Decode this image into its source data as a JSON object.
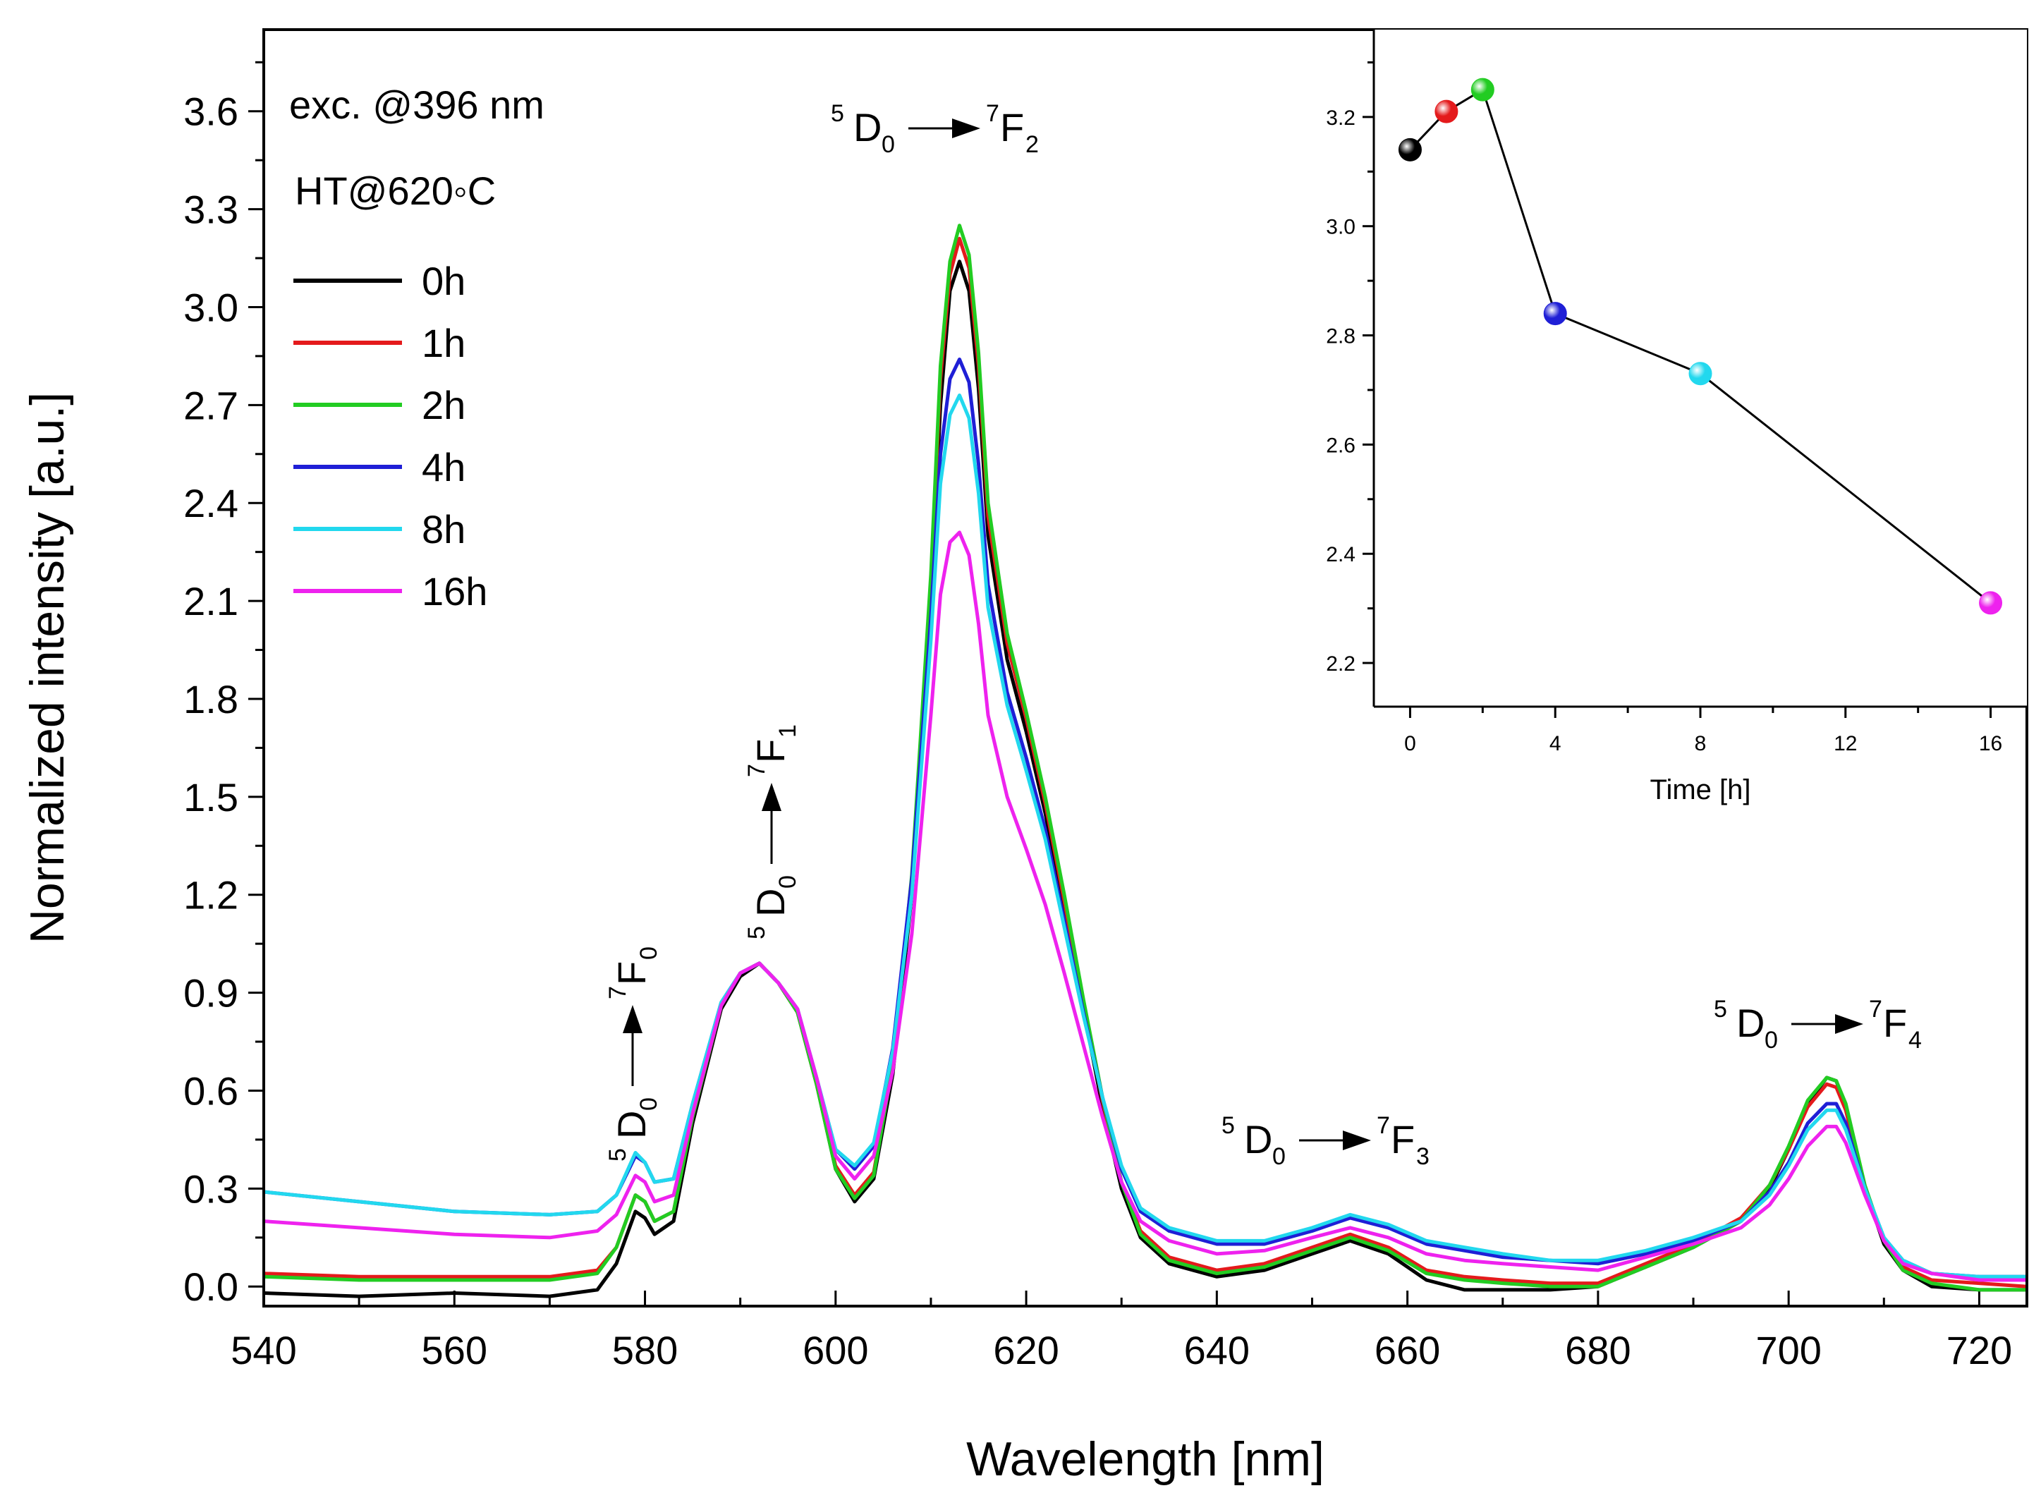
{
  "chart_data": {
    "type": "line",
    "xlabel": "Wavelength [nm]",
    "ylabel": "Normalized intensity [a.u.]",
    "xlim": [
      540,
      725
    ],
    "ylim": [
      -0.06,
      3.85
    ],
    "xticks": [
      540,
      560,
      580,
      600,
      620,
      640,
      660,
      680,
      700,
      720
    ],
    "yticks": [
      0.0,
      0.3,
      0.6,
      0.9,
      1.2,
      1.5,
      1.8,
      2.1,
      2.4,
      2.7,
      3.0,
      3.3,
      3.6
    ],
    "ytick_labels": [
      "0.0",
      "0.3",
      "0.6",
      "0.9",
      "1.2",
      "1.5",
      "1.8",
      "2.1",
      "2.4",
      "2.7",
      "3.0",
      "3.3",
      "3.6"
    ],
    "excitation_label": "exc. @396 nm",
    "treatment_label": "HT@620◦C",
    "series": [
      {
        "name": "0h",
        "color": "#000000",
        "x": [
          540,
          550,
          560,
          570,
          575,
          577,
          579,
          580,
          581,
          583,
          585,
          588,
          590,
          592,
          594,
          596,
          598,
          600,
          602,
          604,
          606,
          608,
          610,
          611,
          612,
          613,
          614,
          615,
          616,
          618,
          620,
          622,
          624,
          626,
          628,
          630,
          632,
          635,
          640,
          645,
          650,
          654,
          658,
          662,
          666,
          670,
          675,
          680,
          685,
          690,
          695,
          698,
          700,
          702,
          704,
          705,
          706,
          708,
          710,
          712,
          715,
          720,
          725
        ],
        "y": [
          -0.02,
          -0.03,
          -0.02,
          -0.03,
          -0.01,
          0.07,
          0.23,
          0.21,
          0.16,
          0.2,
          0.5,
          0.85,
          0.95,
          0.99,
          0.93,
          0.84,
          0.62,
          0.36,
          0.26,
          0.33,
          0.65,
          1.2,
          2.1,
          2.7,
          3.05,
          3.14,
          3.05,
          2.75,
          2.3,
          1.92,
          1.7,
          1.45,
          1.15,
          0.85,
          0.55,
          0.3,
          0.15,
          0.07,
          0.03,
          0.05,
          0.1,
          0.14,
          0.1,
          0.02,
          -0.01,
          -0.01,
          -0.01,
          0,
          0.06,
          0.12,
          0.2,
          0.3,
          0.42,
          0.56,
          0.64,
          0.63,
          0.55,
          0.3,
          0.13,
          0.05,
          0,
          -0.01,
          -0.01
        ]
      },
      {
        "name": "1h",
        "color": "#e41a1c",
        "x": [
          540,
          550,
          560,
          570,
          575,
          577,
          579,
          580,
          581,
          583,
          585,
          588,
          590,
          592,
          594,
          596,
          598,
          600,
          602,
          604,
          606,
          608,
          610,
          611,
          612,
          613,
          614,
          615,
          616,
          618,
          620,
          622,
          624,
          626,
          628,
          630,
          632,
          635,
          640,
          645,
          650,
          654,
          658,
          662,
          666,
          670,
          675,
          680,
          685,
          690,
          695,
          698,
          700,
          702,
          704,
          705,
          706,
          708,
          710,
          712,
          715,
          720,
          725
        ],
        "y": [
          0.04,
          0.03,
          0.03,
          0.03,
          0.05,
          0.12,
          0.28,
          0.26,
          0.2,
          0.23,
          0.52,
          0.86,
          0.96,
          0.99,
          0.93,
          0.84,
          0.62,
          0.37,
          0.28,
          0.35,
          0.68,
          1.25,
          2.15,
          2.78,
          3.1,
          3.21,
          3.12,
          2.82,
          2.36,
          1.97,
          1.74,
          1.48,
          1.18,
          0.87,
          0.57,
          0.32,
          0.17,
          0.09,
          0.05,
          0.07,
          0.12,
          0.16,
          0.12,
          0.05,
          0.03,
          0.02,
          0.01,
          0.01,
          0.07,
          0.13,
          0.21,
          0.31,
          0.42,
          0.55,
          0.62,
          0.61,
          0.54,
          0.3,
          0.14,
          0.06,
          0.02,
          0.01,
          0.0
        ]
      },
      {
        "name": "2h",
        "color": "#22cc22",
        "x": [
          540,
          550,
          560,
          570,
          575,
          577,
          579,
          580,
          581,
          583,
          585,
          588,
          590,
          592,
          594,
          596,
          598,
          600,
          602,
          604,
          606,
          608,
          610,
          611,
          612,
          613,
          614,
          615,
          616,
          618,
          620,
          622,
          624,
          626,
          628,
          630,
          632,
          635,
          640,
          645,
          650,
          654,
          658,
          662,
          666,
          670,
          675,
          680,
          685,
          690,
          695,
          698,
          700,
          702,
          704,
          705,
          706,
          708,
          710,
          712,
          715,
          720,
          725
        ],
        "y": [
          0.03,
          0.02,
          0.02,
          0.02,
          0.04,
          0.12,
          0.28,
          0.26,
          0.2,
          0.23,
          0.52,
          0.86,
          0.96,
          0.99,
          0.93,
          0.84,
          0.62,
          0.36,
          0.27,
          0.34,
          0.68,
          1.26,
          2.18,
          2.82,
          3.14,
          3.25,
          3.16,
          2.86,
          2.4,
          2.0,
          1.76,
          1.5,
          1.2,
          0.88,
          0.58,
          0.32,
          0.16,
          0.08,
          0.04,
          0.06,
          0.11,
          0.15,
          0.11,
          0.04,
          0.02,
          0.01,
          0.0,
          0.0,
          0.06,
          0.12,
          0.2,
          0.31,
          0.43,
          0.57,
          0.64,
          0.63,
          0.56,
          0.31,
          0.14,
          0.05,
          0.01,
          -0.01,
          -0.01
        ]
      },
      {
        "name": "4h",
        "color": "#1f1fd6",
        "x": [
          540,
          550,
          560,
          570,
          575,
          577,
          579,
          580,
          581,
          583,
          585,
          588,
          590,
          592,
          594,
          596,
          598,
          600,
          602,
          604,
          606,
          608,
          610,
          611,
          612,
          613,
          614,
          615,
          616,
          618,
          620,
          622,
          624,
          626,
          628,
          630,
          632,
          635,
          640,
          645,
          650,
          654,
          658,
          662,
          666,
          670,
          675,
          680,
          685,
          690,
          695,
          698,
          700,
          702,
          704,
          705,
          706,
          708,
          710,
          712,
          715,
          720,
          725
        ],
        "y": [
          0.29,
          0.26,
          0.23,
          0.22,
          0.23,
          0.28,
          0.4,
          0.38,
          0.32,
          0.33,
          0.56,
          0.87,
          0.96,
          0.99,
          0.93,
          0.85,
          0.64,
          0.42,
          0.36,
          0.43,
          0.73,
          1.25,
          2.05,
          2.55,
          2.78,
          2.84,
          2.77,
          2.52,
          2.15,
          1.82,
          1.62,
          1.4,
          1.12,
          0.84,
          0.58,
          0.36,
          0.23,
          0.17,
          0.13,
          0.13,
          0.17,
          0.21,
          0.18,
          0.13,
          0.11,
          0.09,
          0.08,
          0.07,
          0.1,
          0.14,
          0.2,
          0.29,
          0.38,
          0.5,
          0.56,
          0.56,
          0.5,
          0.3,
          0.15,
          0.08,
          0.04,
          0.03,
          0.03
        ]
      },
      {
        "name": "8h",
        "color": "#22d8ee",
        "x": [
          540,
          550,
          560,
          570,
          575,
          577,
          579,
          580,
          581,
          583,
          585,
          588,
          590,
          592,
          594,
          596,
          598,
          600,
          602,
          604,
          606,
          608,
          610,
          611,
          612,
          613,
          614,
          615,
          616,
          618,
          620,
          622,
          624,
          626,
          628,
          630,
          632,
          635,
          640,
          645,
          650,
          654,
          658,
          662,
          666,
          670,
          675,
          680,
          685,
          690,
          695,
          698,
          700,
          702,
          704,
          705,
          706,
          708,
          710,
          712,
          715,
          720,
          725
        ],
        "y": [
          0.29,
          0.26,
          0.23,
          0.22,
          0.23,
          0.28,
          0.41,
          0.38,
          0.32,
          0.33,
          0.56,
          0.87,
          0.96,
          0.99,
          0.93,
          0.85,
          0.64,
          0.42,
          0.37,
          0.44,
          0.72,
          1.2,
          1.98,
          2.46,
          2.67,
          2.73,
          2.66,
          2.43,
          2.08,
          1.78,
          1.58,
          1.37,
          1.1,
          0.83,
          0.58,
          0.37,
          0.24,
          0.18,
          0.14,
          0.14,
          0.18,
          0.22,
          0.19,
          0.14,
          0.12,
          0.1,
          0.08,
          0.08,
          0.11,
          0.15,
          0.2,
          0.28,
          0.37,
          0.48,
          0.54,
          0.54,
          0.48,
          0.3,
          0.15,
          0.08,
          0.04,
          0.03,
          0.03
        ]
      },
      {
        "name": "16h",
        "color": "#ee22ee",
        "x": [
          540,
          550,
          560,
          570,
          575,
          577,
          579,
          580,
          581,
          583,
          585,
          588,
          590,
          592,
          594,
          596,
          598,
          600,
          602,
          604,
          606,
          608,
          610,
          611,
          612,
          613,
          614,
          615,
          616,
          618,
          620,
          622,
          624,
          626,
          628,
          630,
          632,
          635,
          640,
          645,
          650,
          654,
          658,
          662,
          666,
          670,
          675,
          680,
          685,
          690,
          695,
          698,
          700,
          702,
          704,
          705,
          706,
          708,
          710,
          712,
          715,
          720,
          725
        ],
        "y": [
          0.2,
          0.18,
          0.16,
          0.15,
          0.17,
          0.22,
          0.34,
          0.32,
          0.26,
          0.28,
          0.53,
          0.86,
          0.96,
          0.99,
          0.93,
          0.85,
          0.64,
          0.4,
          0.33,
          0.4,
          0.66,
          1.08,
          1.75,
          2.12,
          2.28,
          2.31,
          2.24,
          2.03,
          1.75,
          1.5,
          1.34,
          1.17,
          0.96,
          0.74,
          0.52,
          0.32,
          0.2,
          0.14,
          0.1,
          0.11,
          0.15,
          0.18,
          0.15,
          0.1,
          0.08,
          0.07,
          0.06,
          0.05,
          0.09,
          0.13,
          0.18,
          0.25,
          0.33,
          0.43,
          0.49,
          0.49,
          0.44,
          0.28,
          0.14,
          0.07,
          0.04,
          0.02,
          0.02
        ]
      }
    ],
    "annotations": [
      {
        "main": "D",
        "pre_sup": "5",
        "sub": "0",
        "target_main": "F",
        "target_sup": "7",
        "target_sub": "0"
      },
      {
        "main": "D",
        "pre_sup": "5",
        "sub": "0",
        "target_main": "F",
        "target_sup": "7",
        "target_sub": "1"
      },
      {
        "main": "D",
        "pre_sup": "5",
        "sub": "0",
        "target_main": "F",
        "target_sup": "7",
        "target_sub": "2"
      },
      {
        "main": "D",
        "pre_sup": "5",
        "sub": "0",
        "target_main": "F",
        "target_sup": "7",
        "target_sub": "3"
      },
      {
        "main": "D",
        "pre_sup": "5",
        "sub": "0",
        "target_main": "F",
        "target_sup": "7",
        "target_sub": "4"
      }
    ],
    "inset": {
      "type": "scatter-line",
      "xlabel": "Time [h]",
      "ylabel": "",
      "xlim": [
        -1,
        17
      ],
      "ylim": [
        2.12,
        3.36
      ],
      "xticks": [
        0,
        4,
        8,
        12,
        16
      ],
      "yticks": [
        2.2,
        2.4,
        2.6,
        2.8,
        3.0,
        3.2
      ],
      "ytick_labels": [
        "2.2",
        "2.4",
        "2.6",
        "2.8",
        "3.0",
        "3.2"
      ],
      "points": [
        {
          "x": 0,
          "y": 3.14,
          "color": "#000000"
        },
        {
          "x": 1,
          "y": 3.21,
          "color": "#e41a1c"
        },
        {
          "x": 2,
          "y": 3.25,
          "color": "#22cc22"
        },
        {
          "x": 4,
          "y": 2.84,
          "color": "#1f1fd6"
        },
        {
          "x": 8,
          "y": 2.73,
          "color": "#22d8ee"
        },
        {
          "x": 16,
          "y": 2.31,
          "color": "#ee22ee"
        }
      ]
    }
  }
}
